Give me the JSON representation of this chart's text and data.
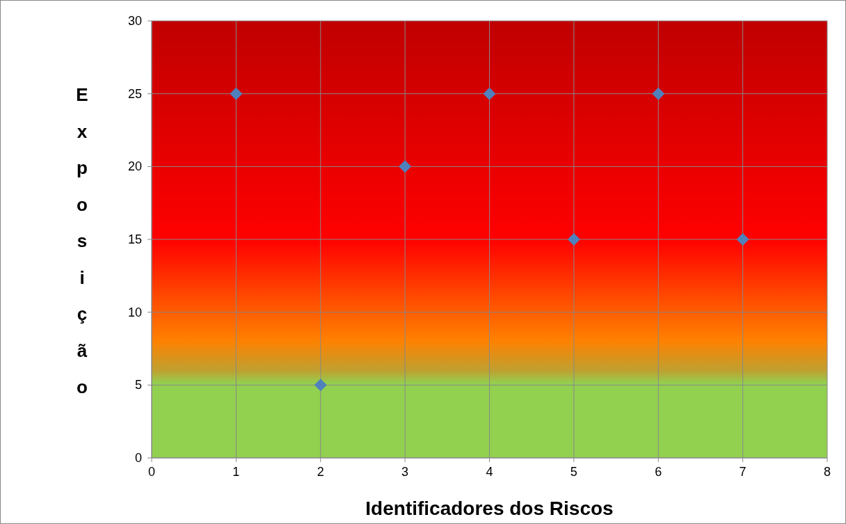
{
  "chart_data": {
    "type": "scatter",
    "xlabel": "Identificadores dos Riscos",
    "ylabel": "Exposição",
    "x": [
      1,
      2,
      3,
      4,
      5,
      6,
      7
    ],
    "series": [
      {
        "color": "#4f81bd",
        "values": [
          25,
          5,
          20,
          25,
          15,
          25,
          15
        ]
      }
    ],
    "marker": "diamond",
    "grid": true,
    "xlim": [
      0,
      8
    ],
    "xticks": [
      0,
      1,
      2,
      3,
      4,
      5,
      6,
      7,
      8
    ],
    "ylim": [
      0,
      30
    ],
    "yticks": [
      0,
      5,
      10,
      15,
      20,
      25,
      30
    ]
  }
}
